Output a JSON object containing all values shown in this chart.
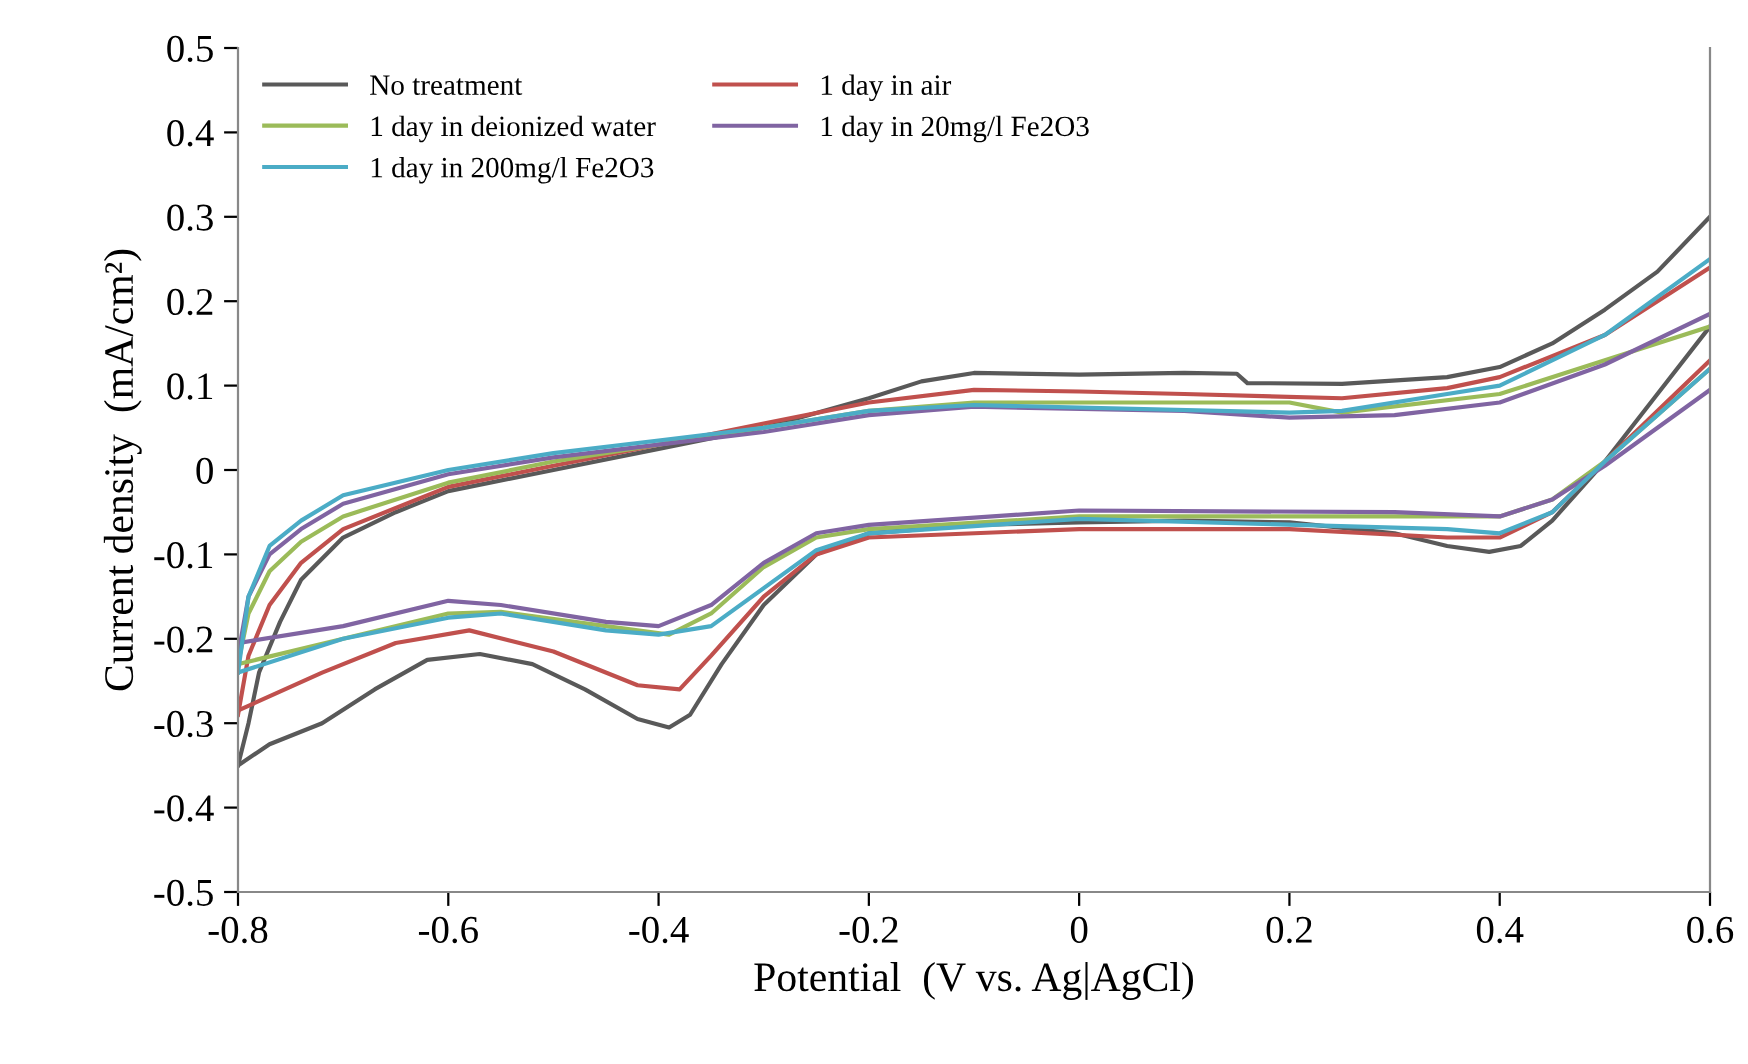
{
  "chart_data": {
    "type": "line",
    "xlabel": "Potential  (V vs. Ag|AgCl)",
    "ylabel": "Current density  (mA/cm²)",
    "xlim": [
      -0.8,
      0.6
    ],
    "ylim": [
      -0.5,
      0.5
    ],
    "xticks": [
      -0.8,
      -0.6,
      -0.4,
      -0.2,
      0,
      0.2,
      0.4,
      0.6
    ],
    "yticks": [
      -0.5,
      -0.4,
      -0.3,
      -0.2,
      -0.1,
      0,
      0.1,
      0.2,
      0.3,
      0.4,
      0.5
    ],
    "grid": false,
    "legend": "top left",
    "marker": "none",
    "line_style": "solid",
    "series": [
      {
        "name": "No treatment",
        "color": "#595959",
        "x": [
          -0.8,
          -0.79,
          -0.78,
          -0.76,
          -0.74,
          -0.7,
          -0.65,
          -0.6,
          -0.5,
          -0.4,
          -0.3,
          -0.2,
          -0.15,
          -0.1,
          0,
          0.1,
          0.15,
          0.16,
          0.25,
          0.35,
          0.4,
          0.45,
          0.5,
          0.55,
          0.6
        ],
        "values": [
          -0.35,
          -0.3,
          -0.24,
          -0.18,
          -0.13,
          -0.08,
          -0.05,
          -0.025,
          0.0,
          0.025,
          0.05,
          0.085,
          0.105,
          0.115,
          0.113,
          0.115,
          0.114,
          0.103,
          0.102,
          0.11,
          0.122,
          0.15,
          0.19,
          0.235,
          0.3
        ]
      },
      {
        "color": "#595959",
        "x": [
          0.6,
          0.55,
          0.5,
          0.45,
          0.42,
          0.39,
          0.35,
          0.3,
          0.2,
          0.1,
          0,
          -0.1,
          -0.2,
          -0.25,
          -0.3,
          -0.34,
          -0.37,
          -0.39,
          -0.42,
          -0.47,
          -0.52,
          -0.57,
          -0.62,
          -0.67,
          -0.72,
          -0.77,
          -0.8
        ],
        "values": [
          0.17,
          0.09,
          0.01,
          -0.06,
          -0.09,
          -0.097,
          -0.09,
          -0.075,
          -0.062,
          -0.06,
          -0.062,
          -0.065,
          -0.075,
          -0.1,
          -0.16,
          -0.23,
          -0.29,
          -0.305,
          -0.295,
          -0.26,
          -0.23,
          -0.218,
          -0.225,
          -0.26,
          -0.3,
          -0.325,
          -0.35
        ]
      },
      {
        "name": "1 day in air",
        "color": "#c0504d",
        "x": [
          -0.8,
          -0.79,
          -0.77,
          -0.74,
          -0.7,
          -0.6,
          -0.5,
          -0.4,
          -0.3,
          -0.2,
          -0.1,
          0,
          0.1,
          0.25,
          0.35,
          0.4,
          0.5,
          0.6
        ],
        "values": [
          -0.29,
          -0.22,
          -0.16,
          -0.11,
          -0.07,
          -0.02,
          0.005,
          0.03,
          0.055,
          0.08,
          0.095,
          0.093,
          0.09,
          0.085,
          0.097,
          0.11,
          0.16,
          0.24
        ]
      },
      {
        "color": "#c0504d",
        "x": [
          0.6,
          0.5,
          0.45,
          0.4,
          0.35,
          0.2,
          0,
          -0.2,
          -0.25,
          -0.3,
          -0.35,
          -0.38,
          -0.42,
          -0.5,
          -0.58,
          -0.65,
          -0.72,
          -0.8
        ],
        "values": [
          0.13,
          0.01,
          -0.05,
          -0.08,
          -0.08,
          -0.07,
          -0.07,
          -0.08,
          -0.1,
          -0.15,
          -0.22,
          -0.26,
          -0.255,
          -0.215,
          -0.19,
          -0.205,
          -0.24,
          -0.285
        ]
      },
      {
        "name": "1 day in deionized water",
        "color": "#9bbb59",
        "x": [
          -0.8,
          -0.79,
          -0.77,
          -0.74,
          -0.7,
          -0.6,
          -0.5,
          -0.4,
          -0.3,
          -0.2,
          -0.1,
          0.2,
          0.25,
          0.4,
          0.5,
          0.6
        ],
        "values": [
          -0.23,
          -0.17,
          -0.12,
          -0.085,
          -0.055,
          -0.015,
          0.01,
          0.03,
          0.05,
          0.07,
          0.08,
          0.08,
          0.068,
          0.09,
          0.13,
          0.17
        ]
      },
      {
        "color": "#9bbb59",
        "x": [
          0.6,
          0.5,
          0.45,
          0.4,
          0.3,
          0,
          -0.2,
          -0.25,
          -0.3,
          -0.35,
          -0.39,
          -0.45,
          -0.55,
          -0.6,
          -0.7,
          -0.8
        ],
        "values": [
          0.12,
          0.01,
          -0.035,
          -0.055,
          -0.055,
          -0.055,
          -0.07,
          -0.08,
          -0.115,
          -0.17,
          -0.195,
          -0.185,
          -0.168,
          -0.17,
          -0.2,
          -0.23
        ]
      },
      {
        "name": "1 day in 20mg/l Fe2O3",
        "color": "#8064a2",
        "x": [
          -0.8,
          -0.79,
          -0.77,
          -0.74,
          -0.7,
          -0.6,
          -0.5,
          -0.4,
          -0.3,
          -0.2,
          -0.1,
          0.1,
          0.2,
          0.3,
          0.4,
          0.5,
          0.6
        ],
        "values": [
          -0.22,
          -0.15,
          -0.1,
          -0.07,
          -0.04,
          -0.005,
          0.015,
          0.03,
          0.045,
          0.065,
          0.075,
          0.07,
          0.062,
          0.065,
          0.08,
          0.125,
          0.185
        ]
      },
      {
        "color": "#8064a2",
        "x": [
          0.6,
          0.5,
          0.45,
          0.4,
          0.3,
          0,
          -0.2,
          -0.25,
          -0.3,
          -0.35,
          -0.4,
          -0.45,
          -0.55,
          -0.6,
          -0.7,
          -0.8
        ],
        "values": [
          0.095,
          0.005,
          -0.035,
          -0.055,
          -0.05,
          -0.048,
          -0.065,
          -0.075,
          -0.11,
          -0.16,
          -0.185,
          -0.18,
          -0.16,
          -0.155,
          -0.185,
          -0.205
        ]
      },
      {
        "name": "1 day in 200mg/l Fe2O3",
        "color": "#4bacc6",
        "x": [
          -0.8,
          -0.79,
          -0.77,
          -0.74,
          -0.7,
          -0.6,
          -0.5,
          -0.4,
          -0.3,
          -0.2,
          -0.1,
          0.2,
          0.25,
          0.35,
          0.4,
          0.5,
          0.6
        ],
        "values": [
          -0.24,
          -0.15,
          -0.09,
          -0.06,
          -0.03,
          0.0,
          0.02,
          0.035,
          0.05,
          0.07,
          0.077,
          0.068,
          0.07,
          0.09,
          0.1,
          0.16,
          0.25
        ]
      },
      {
        "color": "#4bacc6",
        "x": [
          0.6,
          0.5,
          0.45,
          0.4,
          0.35,
          0,
          -0.2,
          -0.25,
          -0.3,
          -0.35,
          -0.4,
          -0.45,
          -0.55,
          -0.6,
          -0.7,
          -0.8
        ],
        "values": [
          0.12,
          0.01,
          -0.05,
          -0.075,
          -0.07,
          -0.058,
          -0.075,
          -0.095,
          -0.14,
          -0.185,
          -0.195,
          -0.19,
          -0.17,
          -0.175,
          -0.2,
          -0.24
        ]
      }
    ]
  }
}
